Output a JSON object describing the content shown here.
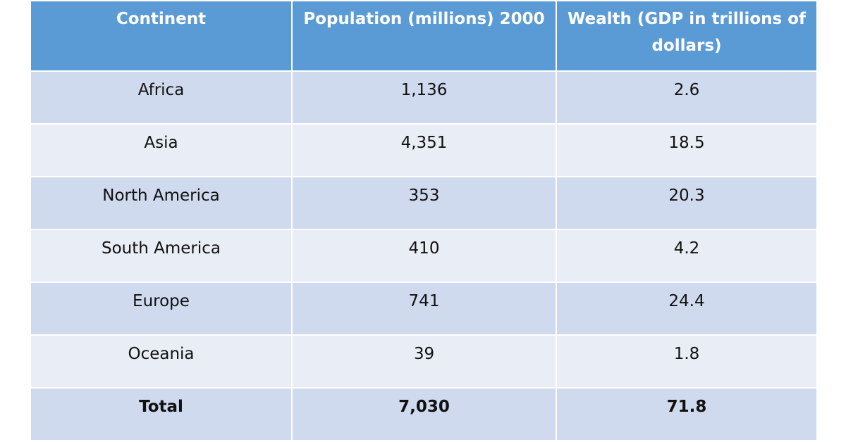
{
  "table": {
    "header": [
      "Continent",
      "Population (millions) 2000",
      "Wealth (GDP in trillions of dollars)"
    ],
    "rows": [
      [
        "Africa",
        "1,136",
        "2.6"
      ],
      [
        "Asia",
        "4,351",
        "18.5"
      ],
      [
        "North America",
        "353",
        "20.3"
      ],
      [
        "South America",
        "410",
        "4.2"
      ],
      [
        "Europe",
        "741",
        "24.4"
      ],
      [
        "Oceania",
        "39",
        "1.8"
      ],
      [
        "Total",
        "7,030",
        "71.8"
      ]
    ]
  }
}
